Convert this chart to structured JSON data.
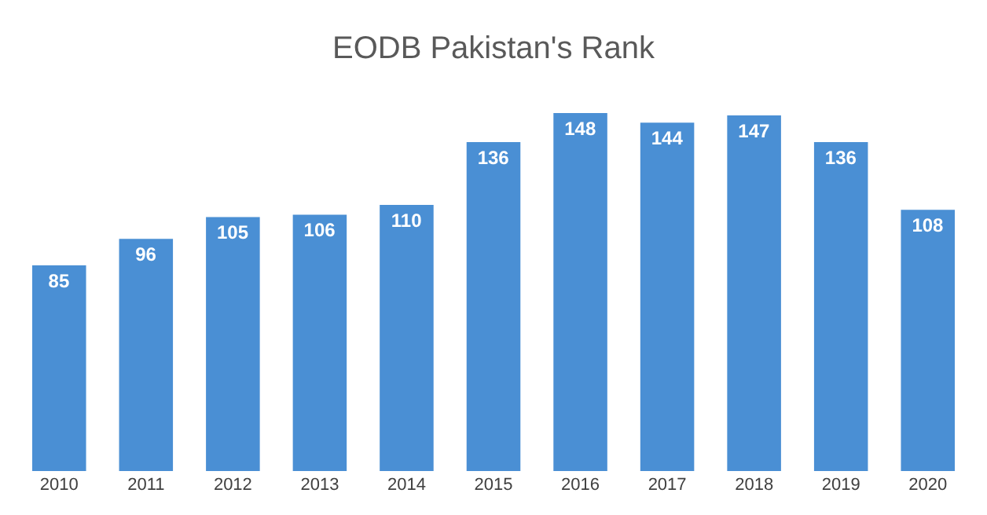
{
  "chart_data": {
    "type": "bar",
    "title": "EODB Pakistan's Rank",
    "categories": [
      "2010",
      "2011",
      "2012",
      "2013",
      "2014",
      "2015",
      "2016",
      "2017",
      "2018",
      "2019",
      "2020"
    ],
    "values": [
      85,
      96,
      105,
      106,
      110,
      136,
      148,
      144,
      147,
      136,
      108
    ],
    "color": "#4a8fd4",
    "data_labels": true,
    "tick_labels": "x"
  }
}
